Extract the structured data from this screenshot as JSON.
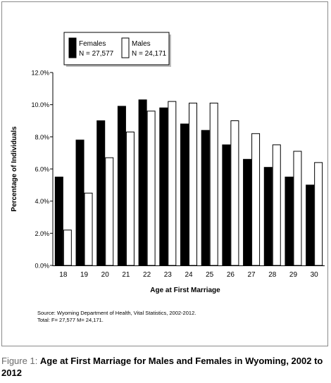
{
  "chart_data": {
    "type": "bar",
    "categories": [
      "18",
      "19",
      "20",
      "21",
      "22",
      "23",
      "24",
      "25",
      "26",
      "27",
      "28",
      "29",
      "30"
    ],
    "series": [
      {
        "name": "Females",
        "n_label": "N = 27,577",
        "color": "#000000",
        "values": [
          5.5,
          7.8,
          9.0,
          9.9,
          10.3,
          9.8,
          8.8,
          8.4,
          7.5,
          6.6,
          6.1,
          5.5,
          5.0
        ]
      },
      {
        "name": "Males",
        "n_label": "N = 24,171",
        "color": "#ffffff",
        "values": [
          2.2,
          4.5,
          6.7,
          8.3,
          9.6,
          10.2,
          10.1,
          10.1,
          9.0,
          8.2,
          7.5,
          7.1,
          6.4
        ]
      }
    ],
    "yticks": [
      "0.0%",
      "2.0%",
      "4.0%",
      "6.0%",
      "8.0%",
      "10.0%",
      "12.0%"
    ],
    "ylim": [
      0,
      12
    ],
    "xlabel": "Age at First Marriage",
    "ylabel": "Percentage of Individuals",
    "legend_position": "top-left",
    "grid": false
  },
  "source": {
    "line1": "Source: Wyoming Department of Health, Vital Statistics, 2002-2012.",
    "line2": "Total: F= 27,577  M= 24,171."
  },
  "caption": {
    "prefix": "Figure 1: ",
    "text": "Age at First Marriage for Males and Females in Wyoming, 2002 to 2012"
  }
}
